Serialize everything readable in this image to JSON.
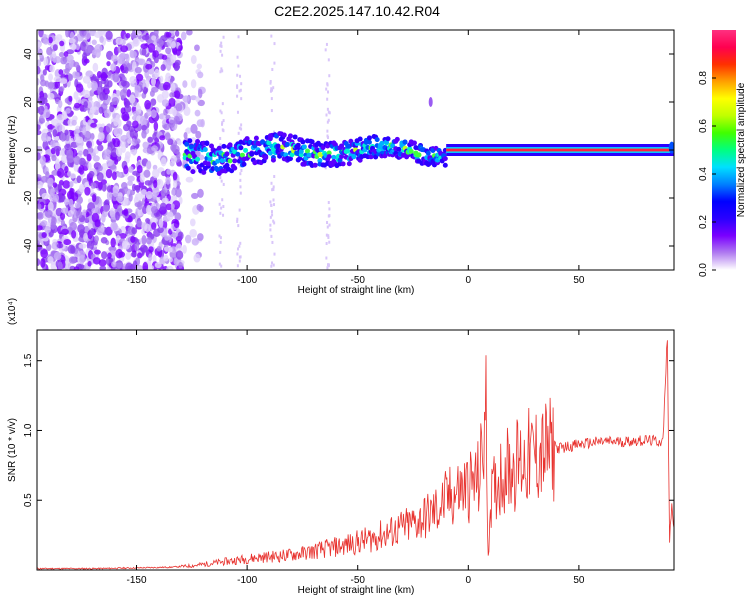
{
  "title": "C2E2.2025.147.10.42.R04",
  "chart_data": [
    {
      "type": "heatmap",
      "xlabel": "Height of straight line (km)",
      "ylabel": "Frequency (Hz)",
      "xlim": [
        -195,
        93
      ],
      "ylim": [
        -50,
        50
      ],
      "x_ticks": [
        "-150",
        "-100",
        "-50",
        "0",
        "50"
      ],
      "x_tick_values": [
        -150,
        -100,
        -50,
        0,
        50
      ],
      "y_ticks": [
        "-40",
        "-20",
        "0",
        "20",
        "40"
      ],
      "y_tick_values": [
        -40,
        -20,
        0,
        20,
        40
      ],
      "colorbar": {
        "label": "Normalized spectral amplitude",
        "range": [
          0,
          1
        ],
        "ticks": [
          "0.0",
          "0.2",
          "0.4",
          "0.6",
          "0.8"
        ],
        "tick_values": [
          0.0,
          0.2,
          0.4,
          0.6,
          0.8
        ],
        "colors": [
          "#ffffff",
          "#b07cf0",
          "#7a00ff",
          "#2a00ff",
          "#0000ff",
          "#0080ff",
          "#00e0ff",
          "#00ff80",
          "#40ff00",
          "#c0ff00",
          "#ffff00",
          "#ffa000",
          "#ff3000",
          "#ff0050",
          "#ff3080"
        ]
      },
      "bands": [
        {
          "x_start": -195,
          "x_end": -130,
          "description_level": 0.15
        },
        {
          "x_start": -130,
          "x_end": -10,
          "description_level": 0.3
        },
        {
          "x_start": -10,
          "x_end": 93,
          "description_level": 1.0
        }
      ]
    },
    {
      "type": "line",
      "xlabel": "Height of straight line (km)",
      "ylabel": "SNR (10 * v/v)",
      "multiplier": "(x10⁴)",
      "xlim": [
        -195,
        93
      ],
      "ylim": [
        0,
        1.72
      ],
      "x_ticks": [
        "-150",
        "-100",
        "-50",
        "0",
        "50"
      ],
      "x_tick_values": [
        -150,
        -100,
        -50,
        0,
        50
      ],
      "y_ticks": [
        "0.5",
        "1.0",
        "1.5"
      ],
      "y_tick_values": [
        0.5,
        1.0,
        1.5
      ],
      "series": [
        {
          "color": "#e8322e",
          "x": [
            -195,
            -170,
            -150,
            -135,
            -125,
            -115,
            -105,
            -95,
            -85,
            -75,
            -65,
            -55,
            -45,
            -35,
            -25,
            -15,
            -10,
            -5,
            0,
            5,
            8,
            9,
            10,
            15,
            20,
            30,
            40,
            50,
            60,
            70,
            80,
            88,
            90,
            91,
            92,
            93
          ],
          "y": [
            0.01,
            0.01,
            0.015,
            0.02,
            0.03,
            0.05,
            0.07,
            0.09,
            0.1,
            0.12,
            0.15,
            0.18,
            0.22,
            0.27,
            0.33,
            0.42,
            0.5,
            0.56,
            0.6,
            0.65,
            1.1,
            0.1,
            0.5,
            0.7,
            0.75,
            0.82,
            0.87,
            0.9,
            0.92,
            0.92,
            0.93,
            0.92,
            1.68,
            0.2,
            0.5,
            0.3
          ]
        }
      ]
    }
  ]
}
